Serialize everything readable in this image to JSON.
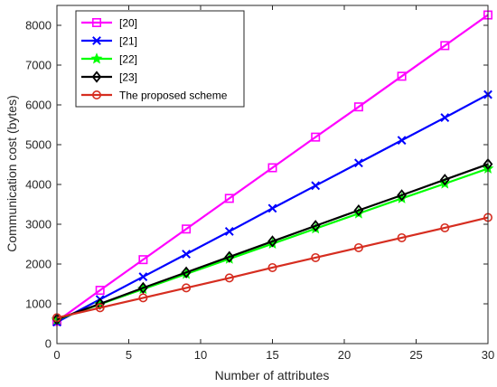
{
  "chart_data": {
    "type": "line",
    "xlabel": "Number of attributes",
    "ylabel": "Communication cost (bytes)",
    "xlim": [
      0,
      30
    ],
    "ylim": [
      0,
      8500
    ],
    "xticks": [
      "0",
      "5",
      "10",
      "15",
      "20",
      "25",
      "30"
    ],
    "yticks": [
      "0",
      "1000",
      "2000",
      "3000",
      "4000",
      "5000",
      "6000",
      "7000",
      "8000"
    ],
    "x": [
      0,
      3,
      6,
      9,
      12,
      15,
      18,
      21,
      24,
      27,
      30
    ],
    "legend_position": "top-left",
    "grid": false,
    "series": [
      {
        "name": "[20]",
        "color": "#ff00ff",
        "marker": "square",
        "values": [
          560,
          1340,
          2110,
          2880,
          3650,
          4420,
          5190,
          5950,
          6720,
          7490,
          8260
        ]
      },
      {
        "name": "[21]",
        "color": "#0000ff",
        "marker": "x",
        "values": [
          540,
          1110,
          1680,
          2250,
          2820,
          3400,
          3970,
          4540,
          5110,
          5680,
          6260
        ]
      },
      {
        "name": "[22]",
        "color": "#00ff00",
        "marker": "star",
        "values": [
          600,
          990,
          1370,
          1750,
          2130,
          2510,
          2890,
          3270,
          3650,
          4020,
          4400
        ]
      },
      {
        "name": "[23]",
        "color": "#000000",
        "marker": "diamond",
        "values": [
          610,
          1000,
          1400,
          1790,
          2180,
          2570,
          2960,
          3350,
          3730,
          4120,
          4510
        ]
      },
      {
        "name": "The proposed scheme",
        "color": "#d62d20",
        "marker": "circle",
        "values": [
          650,
          900,
          1150,
          1400,
          1650,
          1910,
          2160,
          2410,
          2660,
          2910,
          3170
        ]
      }
    ]
  }
}
